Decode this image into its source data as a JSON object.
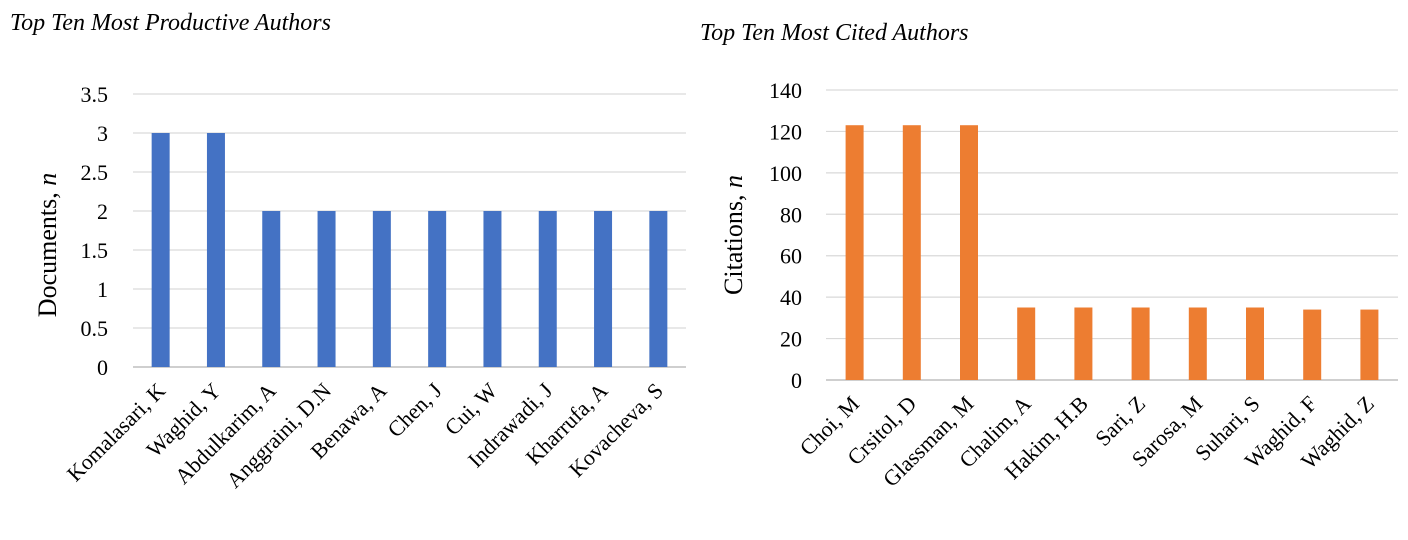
{
  "chart_data": [
    {
      "type": "bar",
      "title": "Top Ten Most Productive Authors",
      "xlabel": "",
      "ylabel_text": "Documents, ",
      "ylabel_var": "n",
      "categories": [
        "Komalasari, K",
        "Waghid, Y",
        "Abdulkarim, A",
        "Anggraini, D.N",
        "Benawa, A",
        "Chen, J",
        "Cui, W",
        "Indrawadi, J",
        "Kharrufa, A",
        "Kovacheva, S"
      ],
      "values": [
        3,
        3,
        2,
        2,
        2,
        2,
        2,
        2,
        2,
        2
      ],
      "ylim": [
        0,
        3.5
      ],
      "yticks": [
        "0",
        "0.5",
        "1",
        "1.5",
        "2",
        "2.5",
        "3",
        "3.5"
      ],
      "grid": true,
      "bar_color": "#4472c4"
    },
    {
      "type": "bar",
      "title": "Top Ten Most Cited Authors",
      "xlabel": "",
      "ylabel_text": "Citations, ",
      "ylabel_var": "n",
      "categories": [
        "Choi, M",
        "Crsitol, D",
        "Glassman, M",
        "Chalim, A",
        "Hakim, H.B",
        "Sari, Z",
        "Sarosa, M",
        "Suhari, S",
        "Waghid, F",
        "Waghid, Z"
      ],
      "values": [
        123,
        123,
        123,
        35,
        35,
        35,
        35,
        35,
        34,
        34
      ],
      "ylim": [
        0,
        140
      ],
      "yticks": [
        "0",
        "20",
        "40",
        "60",
        "80",
        "100",
        "120",
        "140"
      ],
      "grid": true,
      "bar_color": "#ed7d31"
    }
  ]
}
